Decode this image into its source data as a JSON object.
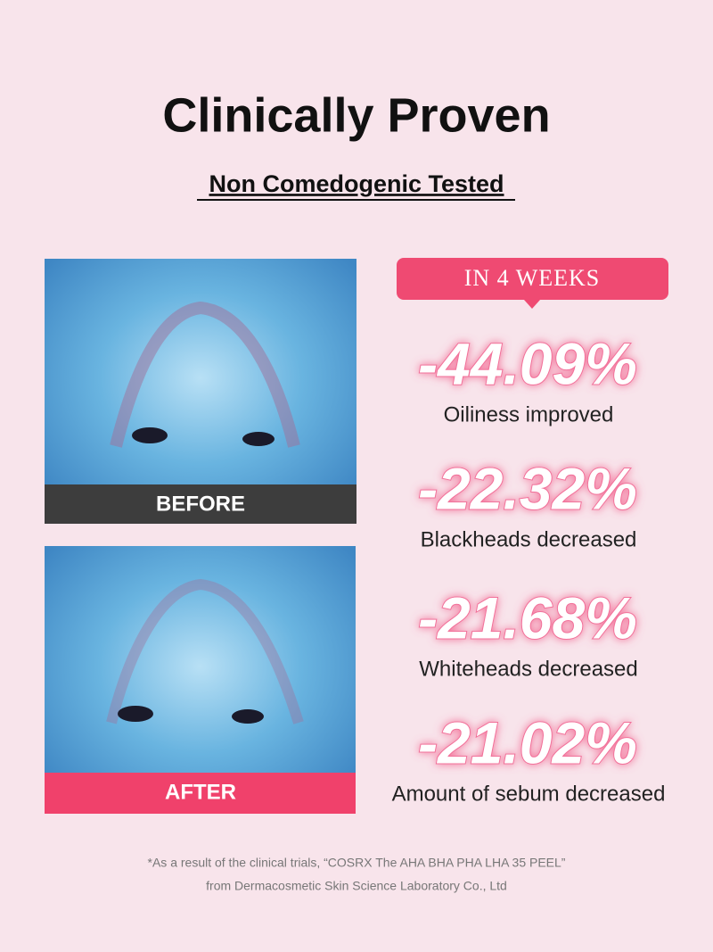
{
  "header": {
    "title": "Clinically Proven",
    "subtitle": "Non Comedogenic Tested"
  },
  "images": [
    {
      "label": "BEFORE"
    },
    {
      "label": "AFTER"
    }
  ],
  "badge": "IN 4 WEEKS",
  "stats": [
    {
      "value": "-44.09%",
      "label": "Oiliness improved"
    },
    {
      "value": "-22.32%",
      "label": "Blackheads decreased"
    },
    {
      "value": "-21.68%",
      "label": "Whiteheads decreased"
    },
    {
      "value": "-21.02%",
      "label": "Amount of sebum decreased"
    }
  ],
  "footnote": [
    "*As a result of the clinical trials, “COSRX The AHA BHA PHA LHA 35 PEEL”",
    "from Dermacosmetic Skin Science Laboratory Co., Ltd"
  ]
}
